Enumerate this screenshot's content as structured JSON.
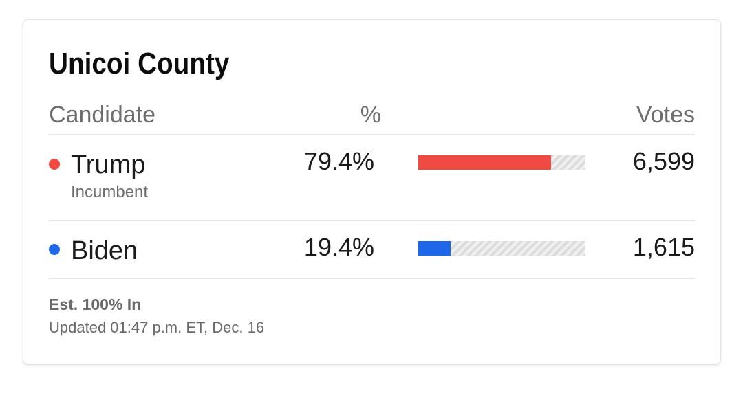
{
  "county": {
    "title": "Unicoi County"
  },
  "table": {
    "headers": {
      "candidate": "Candidate",
      "percent": "%",
      "votes": "Votes"
    },
    "candidates": [
      {
        "name": "Trump",
        "subtitle": "Incumbent",
        "percent": "79.4%",
        "share": 0.794,
        "votes": "6,599",
        "color": "#f04a42"
      },
      {
        "name": "Biden",
        "subtitle": "",
        "percent": "19.4%",
        "share": 0.194,
        "votes": "1,615",
        "color": "#1e67e8"
      }
    ]
  },
  "footer": {
    "estimate": "Est. 100% In",
    "updated": "Updated 01:47 p.m. ET, Dec. 16"
  }
}
